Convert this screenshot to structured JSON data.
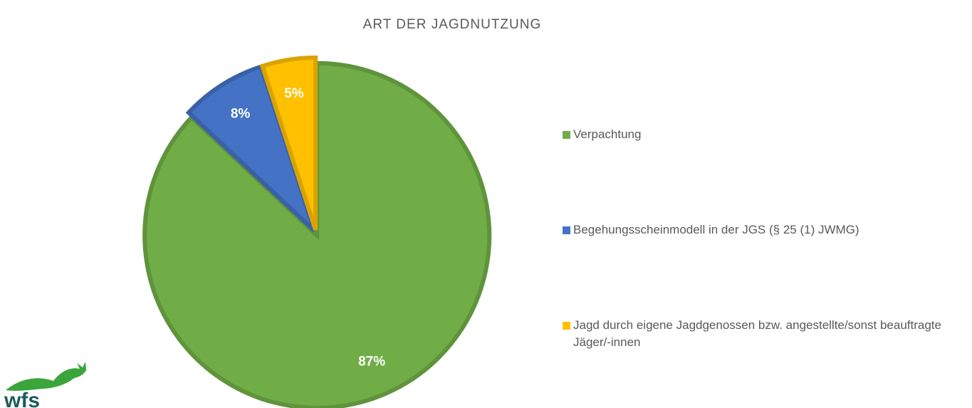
{
  "chart_data": {
    "type": "pie",
    "title": "ART DER JAGDNUTZUNG",
    "categories": [
      "Verpachtung",
      "Begehungsscheinmodell in der JGS (§ 25 (1) JWMG)",
      "Jagd durch eigene Jagdgenossen bzw. angestellte/sonst beauftragte Jäger/-innen"
    ],
    "values": [
      87,
      8,
      5
    ],
    "value_labels": [
      "87%",
      "8%",
      "5%"
    ],
    "colors": [
      "#70ad47",
      "#4472c4",
      "#ffc000"
    ],
    "legend": "right"
  },
  "logo": {
    "text": "wfs"
  }
}
